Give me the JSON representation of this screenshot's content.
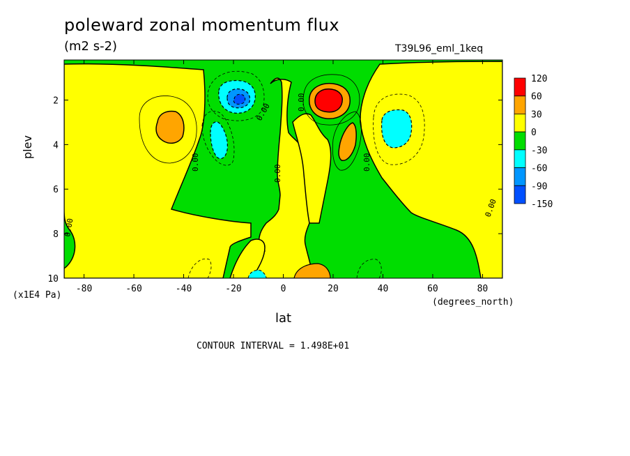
{
  "chart_data": {
    "type": "heatmap",
    "title": "poleward zonal momentum flux",
    "units": "(m2 s-2)",
    "run_label": "T39L96_eml_1keq",
    "xlabel": "lat",
    "x_unit_label": "(degrees_north)",
    "ylabel": "plev",
    "y_unit_label": "(x1E4 Pa)",
    "xlim": [
      -88,
      88
    ],
    "ylim": [
      0.2,
      10
    ],
    "y_inverted": true,
    "x_ticks": [
      -80,
      -60,
      -40,
      -20,
      0,
      20,
      40,
      60,
      80
    ],
    "y_ticks": [
      2,
      4,
      6,
      8,
      10
    ],
    "contour_interval_label": "CONTOUR INTERVAL = 1.498E+01",
    "contour_labels": [
      "0.00",
      "0.00",
      "0.00",
      "0.00",
      "0.00",
      "0.00",
      "0.00",
      "0.00",
      "0.00"
    ],
    "colorbar": {
      "levels": [
        120,
        60,
        30,
        0,
        -30,
        -60,
        -90,
        -150
      ],
      "colors": [
        "#ff0000",
        "#ffa500",
        "#ffff00",
        "#00dd00",
        "#00ffff",
        "#0096ff",
        "#0050ff"
      ]
    },
    "features": [
      {
        "lat": 18,
        "plev": 2.0,
        "value": 120,
        "sign": "positive"
      },
      {
        "lat": -18,
        "plev": 2.0,
        "value": -100,
        "sign": "negative"
      },
      {
        "lat": -47,
        "plev": 3.0,
        "value": 40,
        "sign": "positive"
      },
      {
        "lat": 44,
        "plev": 3.2,
        "value": -40,
        "sign": "negative"
      },
      {
        "lat": -26,
        "plev": 3.8,
        "value": -40,
        "sign": "negative"
      },
      {
        "lat": 26,
        "plev": 4.0,
        "value": 40,
        "sign": "positive"
      }
    ]
  }
}
